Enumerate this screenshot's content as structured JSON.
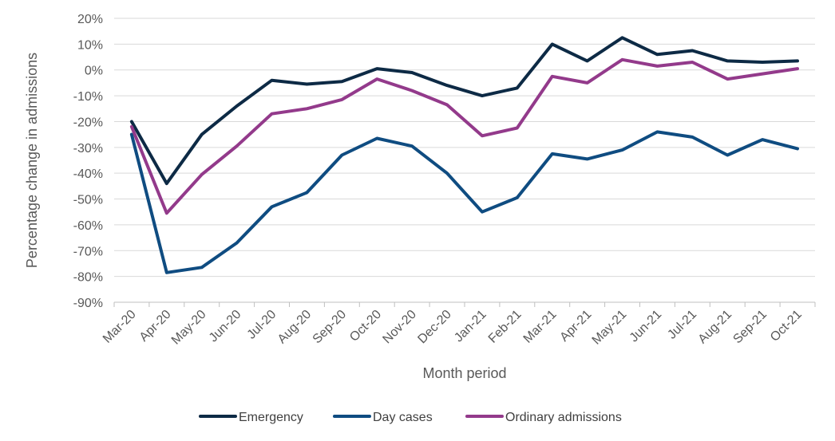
{
  "chart_data": {
    "type": "line",
    "xlabel": "Month period",
    "ylabel": "Percentage change in admissions",
    "ylim": [
      -90,
      20
    ],
    "ytick_step": 10,
    "yticks": [
      "20%",
      "10%",
      "0%",
      "-10%",
      "-20%",
      "-30%",
      "-40%",
      "-50%",
      "-60%",
      "-70%",
      "-80%",
      "-90%"
    ],
    "grid": true,
    "legend_position": "bottom",
    "categories": [
      "Mar-20",
      "Apr-20",
      "May-20",
      "Jun-20",
      "Jul-20",
      "Aug-20",
      "Sep-20",
      "Oct-20",
      "Nov-20",
      "Dec-20",
      "Jan-21",
      "Feb-21",
      "Mar-21",
      "Apr-21",
      "May-21",
      "Jun-21",
      "Jul-21",
      "Aug-21",
      "Sep-21",
      "Oct-21"
    ],
    "series": [
      {
        "name": "Emergency",
        "color": "#0d2a45",
        "values": [
          -20,
          -44,
          -25,
          -14,
          -4,
          -5.5,
          -4.5,
          0.5,
          -1,
          -6,
          -10,
          -7,
          10,
          3.5,
          12.5,
          6,
          7.5,
          3.5,
          3,
          3.5
        ]
      },
      {
        "name": "Day cases",
        "color": "#0f4c81",
        "values": [
          -25,
          -78.5,
          -76.5,
          -67,
          -53,
          -47.5,
          -33,
          -26.5,
          -29.5,
          -40,
          -55,
          -49.5,
          -32.5,
          -34.5,
          -31,
          -24,
          -26,
          -33,
          -27,
          -30.5
        ]
      },
      {
        "name": "Ordinary admissions",
        "color": "#933a8b",
        "values": [
          -22,
          -55.5,
          -40.5,
          -29.5,
          -17,
          -15,
          -11.5,
          -3.5,
          -8,
          -13.5,
          -25.5,
          -22.5,
          -2.5,
          -5,
          4,
          1.5,
          3,
          -3.5,
          -1.5,
          0.5
        ]
      }
    ]
  }
}
